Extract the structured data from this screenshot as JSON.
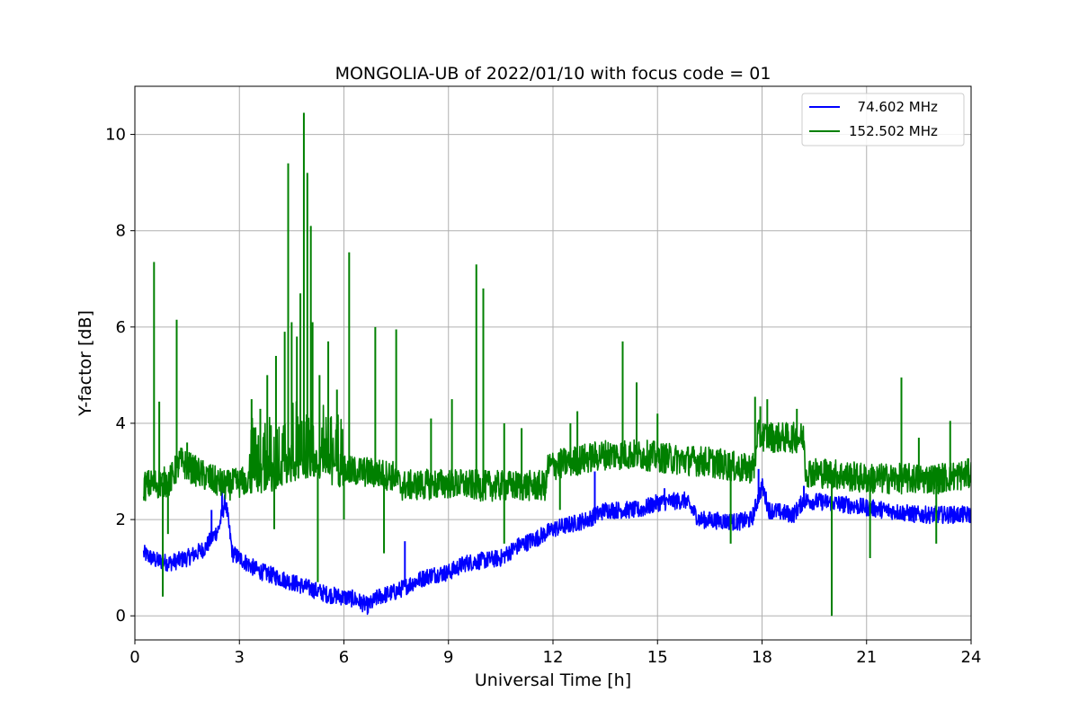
{
  "chart_data": {
    "type": "line",
    "title": "MONGOLIA-UB of 2022/01/10 with focus code = 01",
    "xlabel": "Universal Time [h]",
    "ylabel": "Y-factor [dB]",
    "xlim": [
      0,
      24
    ],
    "ylim": [
      -0.5,
      11
    ],
    "xticks": [
      0,
      3,
      6,
      9,
      12,
      15,
      18,
      21,
      24
    ],
    "xtick_labels": [
      "0",
      "3",
      "6",
      "9",
      "12",
      "15",
      "18",
      "21",
      "24"
    ],
    "yticks": [
      0,
      2,
      4,
      6,
      8,
      10
    ],
    "ytick_labels": [
      "0",
      "2",
      "4",
      "6",
      "8",
      "10"
    ],
    "grid": true,
    "legend_position": "top-right",
    "series": [
      {
        "name": "  74.602 MHz",
        "color": "#0000ff",
        "noise": 0.18,
        "baseline": [
          [
            0.25,
            1.3
          ],
          [
            0.6,
            1.15
          ],
          [
            1.0,
            1.1
          ],
          [
            1.5,
            1.2
          ],
          [
            2.0,
            1.4
          ],
          [
            2.4,
            1.8
          ],
          [
            2.6,
            2.4
          ],
          [
            2.8,
            1.3
          ],
          [
            3.5,
            0.95
          ],
          [
            4.5,
            0.7
          ],
          [
            5.5,
            0.45
          ],
          [
            6.3,
            0.35
          ],
          [
            6.7,
            0.2
          ],
          [
            7.0,
            0.4
          ],
          [
            7.5,
            0.5
          ],
          [
            8.0,
            0.7
          ],
          [
            8.5,
            0.85
          ],
          [
            9.0,
            0.9
          ],
          [
            9.5,
            1.1
          ],
          [
            10.5,
            1.2
          ],
          [
            11.0,
            1.45
          ],
          [
            11.5,
            1.6
          ],
          [
            12.0,
            1.8
          ],
          [
            12.5,
            1.9
          ],
          [
            13.0,
            2.0
          ],
          [
            13.5,
            2.2
          ],
          [
            14.5,
            2.2
          ],
          [
            15.0,
            2.35
          ],
          [
            15.8,
            2.4
          ],
          [
            16.2,
            2.0
          ],
          [
            17.3,
            1.95
          ],
          [
            17.7,
            2.0
          ],
          [
            18.0,
            2.7
          ],
          [
            18.2,
            2.2
          ],
          [
            18.9,
            2.1
          ],
          [
            19.2,
            2.4
          ],
          [
            20.0,
            2.35
          ],
          [
            20.5,
            2.3
          ],
          [
            21.5,
            2.2
          ],
          [
            22.5,
            2.1
          ],
          [
            24.0,
            2.1
          ]
        ],
        "spikes": [
          [
            2.2,
            2.2
          ],
          [
            2.5,
            2.6
          ],
          [
            7.75,
            1.55
          ],
          [
            13.2,
            3.0
          ],
          [
            15.2,
            2.65
          ],
          [
            17.9,
            3.05
          ],
          [
            19.2,
            2.7
          ]
        ],
        "dips": []
      },
      {
        "name": "152.502 MHz",
        "color": "#008000",
        "noise": 0.32,
        "baseline": [
          [
            0.25,
            2.7
          ],
          [
            1.0,
            2.8
          ],
          [
            1.3,
            3.2
          ],
          [
            2.0,
            2.9
          ],
          [
            2.6,
            2.7
          ],
          [
            3.2,
            2.8
          ],
          [
            4.0,
            2.9
          ],
          [
            5.0,
            3.2
          ],
          [
            5.8,
            3.0
          ],
          [
            6.5,
            3.0
          ],
          [
            7.5,
            2.9
          ],
          [
            7.6,
            2.7
          ],
          [
            9.0,
            2.75
          ],
          [
            10.0,
            2.7
          ],
          [
            11.0,
            2.7
          ],
          [
            11.8,
            2.7
          ],
          [
            11.85,
            3.1
          ],
          [
            12.5,
            3.2
          ],
          [
            13.5,
            3.35
          ],
          [
            14.5,
            3.35
          ],
          [
            15.5,
            3.25
          ],
          [
            16.5,
            3.2
          ],
          [
            17.5,
            3.05
          ],
          [
            17.8,
            3.1
          ],
          [
            17.85,
            3.75
          ],
          [
            18.5,
            3.7
          ],
          [
            19.2,
            3.7
          ],
          [
            19.25,
            3.0
          ],
          [
            20.0,
            2.95
          ],
          [
            21.0,
            2.85
          ],
          [
            22.0,
            2.85
          ],
          [
            23.0,
            2.85
          ],
          [
            24.0,
            2.95
          ]
        ],
        "spikes": [
          [
            0.55,
            7.35
          ],
          [
            0.7,
            4.45
          ],
          [
            1.2,
            6.15
          ],
          [
            1.5,
            3.6
          ],
          [
            3.35,
            4.5
          ],
          [
            3.6,
            4.3
          ],
          [
            3.8,
            5.0
          ],
          [
            4.05,
            5.4
          ],
          [
            4.3,
            5.9
          ],
          [
            4.4,
            9.4
          ],
          [
            4.5,
            6.1
          ],
          [
            4.65,
            5.8
          ],
          [
            4.75,
            6.7
          ],
          [
            4.85,
            10.45
          ],
          [
            4.95,
            9.2
          ],
          [
            5.05,
            8.1
          ],
          [
            5.1,
            6.1
          ],
          [
            5.3,
            5.0
          ],
          [
            5.55,
            5.7
          ],
          [
            5.8,
            4.7
          ],
          [
            6.15,
            7.55
          ],
          [
            6.9,
            6.0
          ],
          [
            7.5,
            5.95
          ],
          [
            8.5,
            4.1
          ],
          [
            9.1,
            4.5
          ],
          [
            9.8,
            7.3
          ],
          [
            10.0,
            6.8
          ],
          [
            10.6,
            4.0
          ],
          [
            11.1,
            3.9
          ],
          [
            12.5,
            4.0
          ],
          [
            12.7,
            4.25
          ],
          [
            14.0,
            5.7
          ],
          [
            14.4,
            4.85
          ],
          [
            15.0,
            4.2
          ],
          [
            17.8,
            4.55
          ],
          [
            17.95,
            4.35
          ],
          [
            18.15,
            4.5
          ],
          [
            19.0,
            4.3
          ],
          [
            22.0,
            4.95
          ],
          [
            22.5,
            3.7
          ],
          [
            23.4,
            4.05
          ]
        ],
        "dips": [
          [
            0.8,
            0.4
          ],
          [
            0.95,
            1.7
          ],
          [
            4.0,
            1.8
          ],
          [
            5.25,
            0.7
          ],
          [
            6.0,
            2.0
          ],
          [
            7.15,
            1.3
          ],
          [
            10.6,
            1.5
          ],
          [
            12.2,
            2.2
          ],
          [
            17.1,
            1.5
          ],
          [
            20.0,
            0.0
          ],
          [
            21.1,
            1.2
          ],
          [
            23.0,
            1.5
          ]
        ]
      }
    ]
  }
}
